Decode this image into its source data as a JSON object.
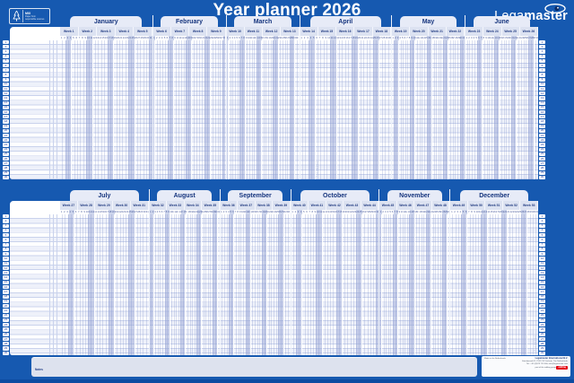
{
  "title": "Year planner 2026",
  "brand": {
    "normal": "Lega",
    "bold": "master",
    "eye_icon": "legamaster-eye"
  },
  "fsc": {
    "org": "FSC",
    "mix": "MIX",
    "line1": "Paper from",
    "line2": "responsible sources"
  },
  "rows_per_band": 30,
  "notes_label": "Notes",
  "made_in": "Made in the Netherlands",
  "company": {
    "name": "Legamaster International B.V.",
    "line1": "Kwinkweerd 62, 7241 CW Lochem, The Netherlands",
    "line2": "Tel.: +31 (0)573 713 000, info@legamaster.com",
    "tagline": "part of the edding group",
    "edding_label": "edding"
  },
  "print_code": "7-420200",
  "colors": {
    "background_blue": "#1659b0",
    "tab_bg": "#e7ebf7",
    "header_bg": "#dce2f1",
    "weekend_shade": "#c3cde8",
    "navy_text": "#16357e",
    "edding_red": "#e30613"
  },
  "bands": [
    {
      "months": [
        {
          "name": "January",
          "weeks": [
            "Week 1",
            "Week 2",
            "Week 3",
            "Week 4",
            "Week 5"
          ],
          "days": 31,
          "start": 3
        },
        {
          "name": "February",
          "weeks": [
            "Week 6",
            "Week 7",
            "Week 8",
            "Week 9"
          ],
          "days": 28,
          "start": 6
        },
        {
          "name": "March",
          "weeks": [
            "Week 10",
            "Week 11",
            "Week 12",
            "Week 13"
          ],
          "days": 31,
          "start": 6
        },
        {
          "name": "April",
          "weeks": [
            "Week 14",
            "Week 15",
            "Week 16",
            "Week 17",
            "Week 18"
          ],
          "days": 30,
          "start": 2
        },
        {
          "name": "May",
          "weeks": [
            "Week 19",
            "Week 20",
            "Week 21",
            "Week 22"
          ],
          "days": 31,
          "start": 4
        },
        {
          "name": "June",
          "weeks": [
            "Week 23",
            "Week 24",
            "Week 25",
            "Week 26"
          ],
          "days": 30,
          "start": 0
        }
      ]
    },
    {
      "months": [
        {
          "name": "July",
          "weeks": [
            "Week 27",
            "Week 28",
            "Week 29",
            "Week 30",
            "Week 31"
          ],
          "days": 31,
          "start": 2
        },
        {
          "name": "August",
          "weeks": [
            "Week 32",
            "Week 33",
            "Week 34",
            "Week 35"
          ],
          "days": 31,
          "start": 5
        },
        {
          "name": "September",
          "weeks": [
            "Week 36",
            "Week 37",
            "Week 38",
            "Week 39"
          ],
          "days": 30,
          "start": 1
        },
        {
          "name": "October",
          "weeks": [
            "Week 40",
            "Week 41",
            "Week 42",
            "Week 43",
            "Week 44"
          ],
          "days": 31,
          "start": 3
        },
        {
          "name": "November",
          "weeks": [
            "Week 45",
            "Week 46",
            "Week 47",
            "Week 48"
          ],
          "days": 30,
          "start": 6
        },
        {
          "name": "December",
          "weeks": [
            "Week 49",
            "Week 50",
            "Week 51",
            "Week 52",
            "Week 53"
          ],
          "days": 31,
          "start": 1
        }
      ]
    }
  ]
}
